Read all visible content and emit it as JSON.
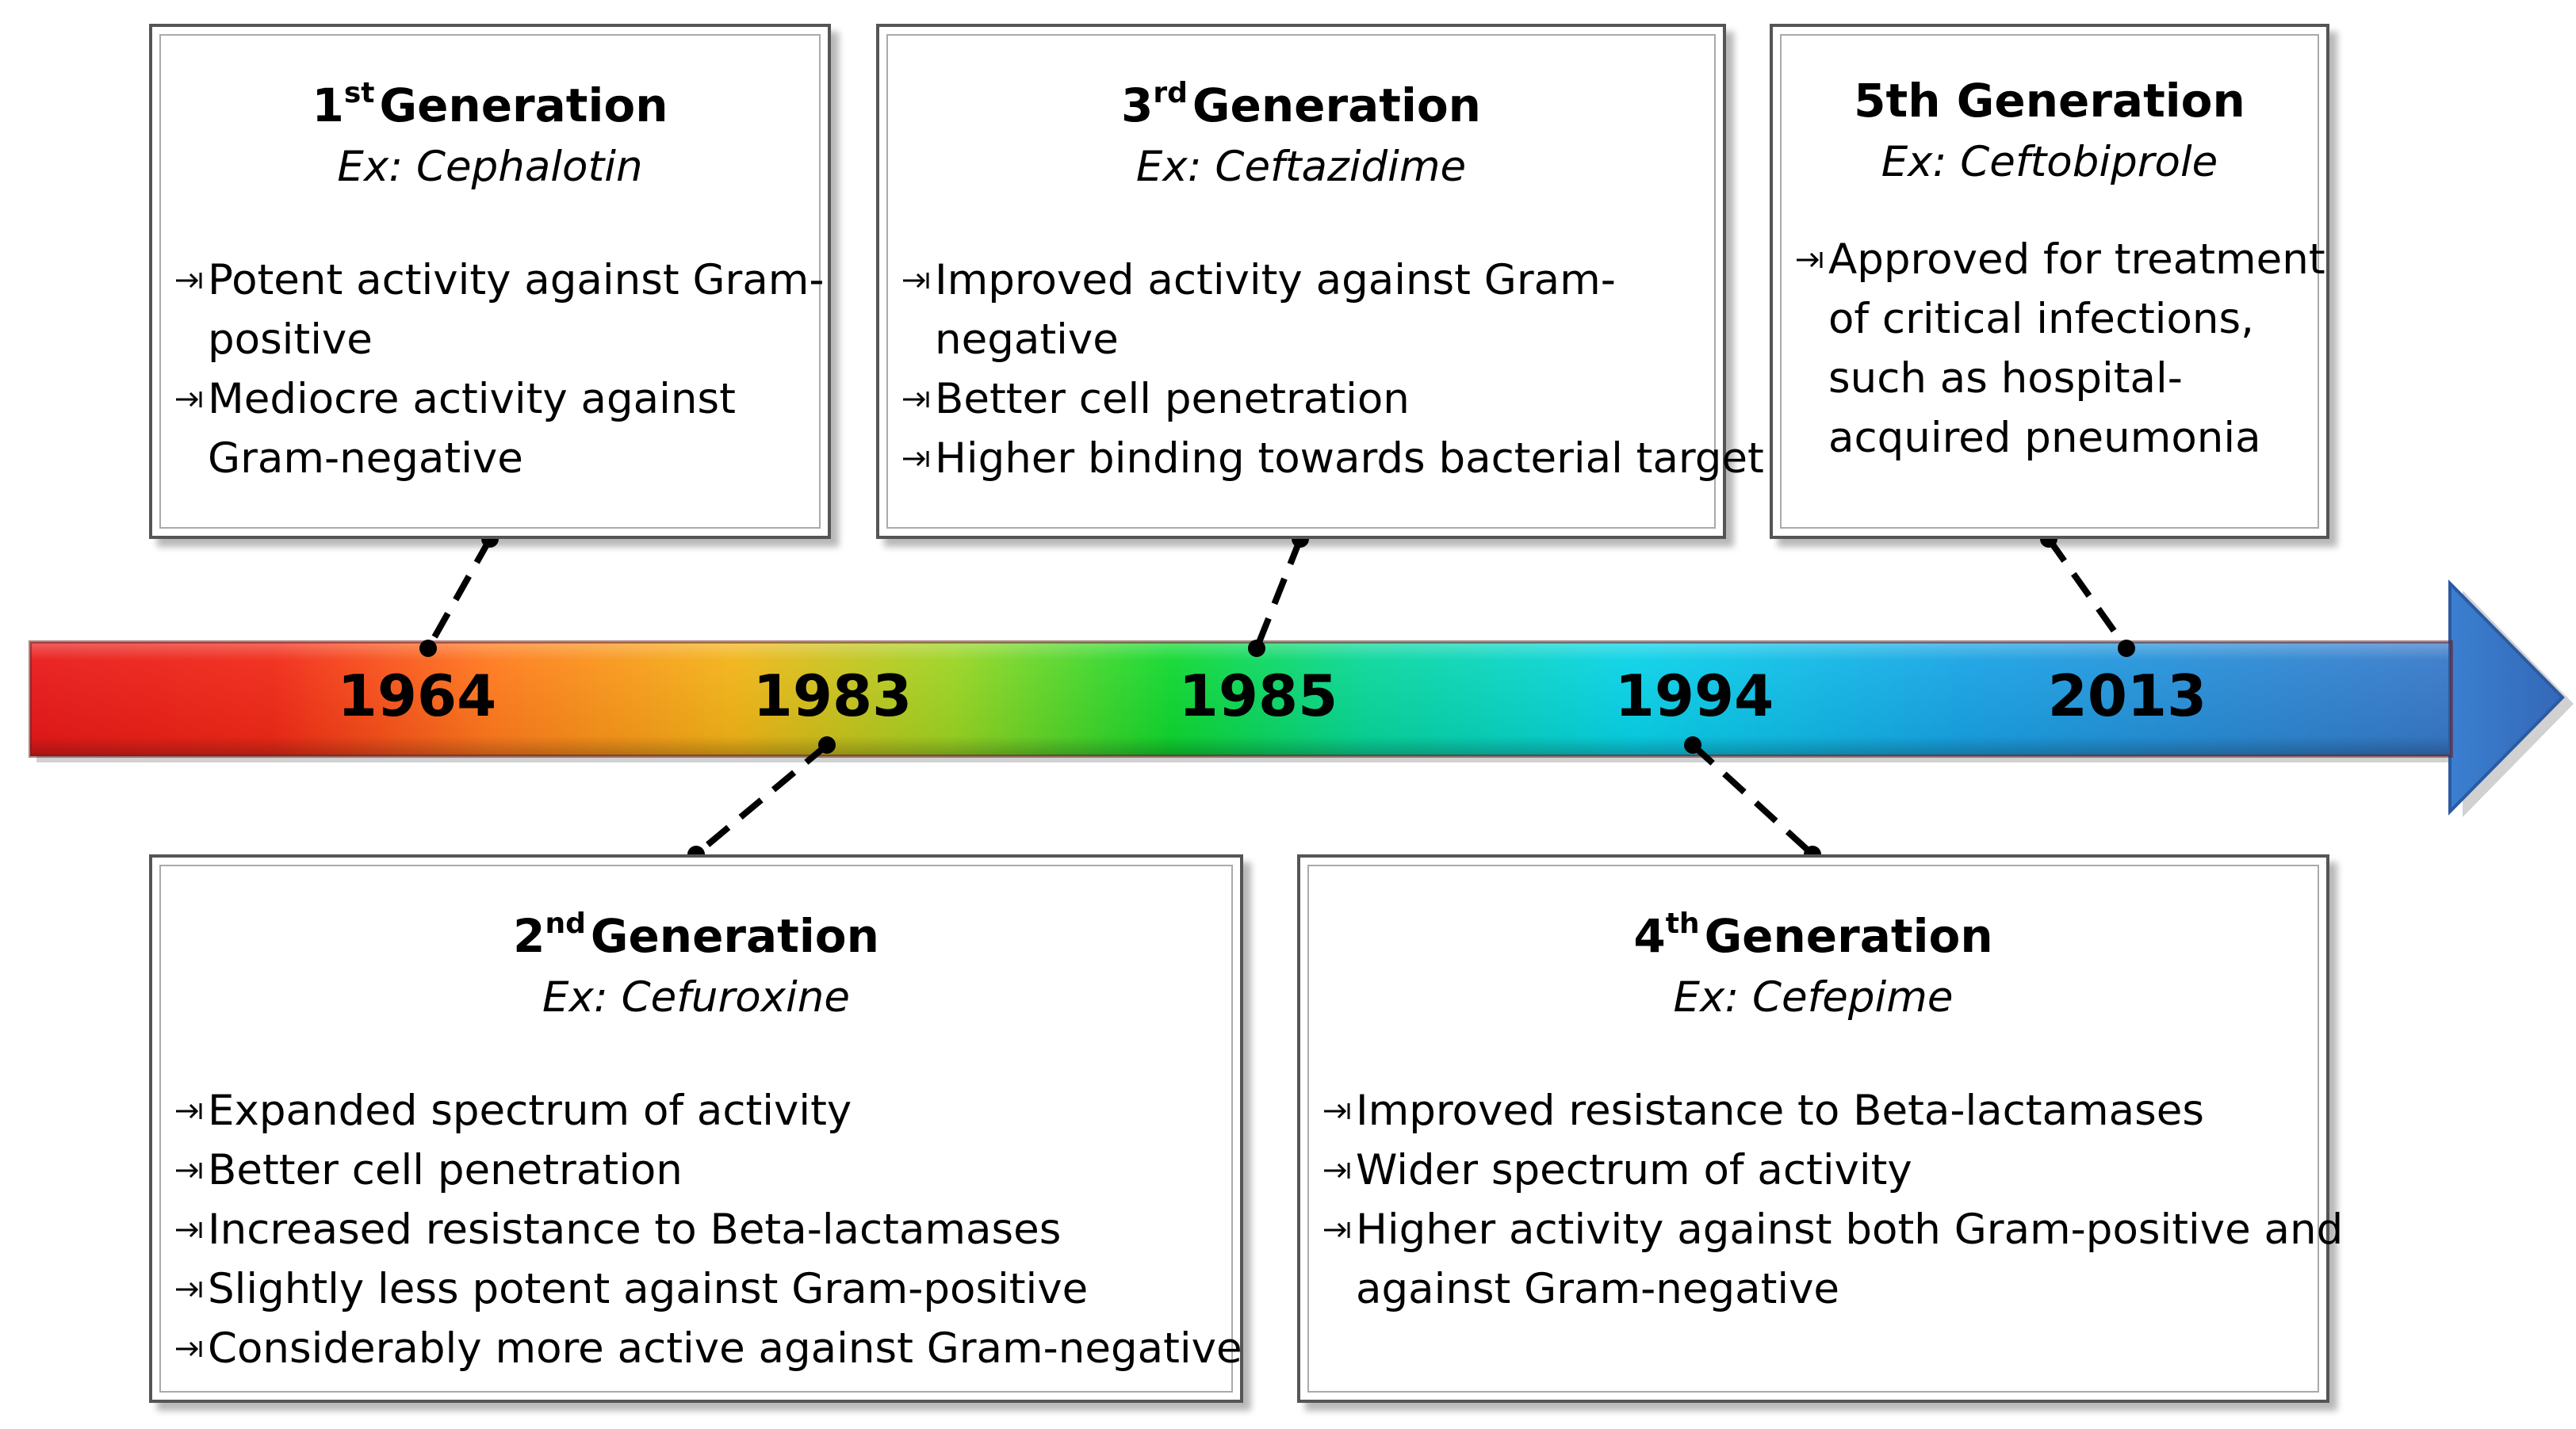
{
  "timeline": {
    "years": [
      "1964",
      "1983",
      "1985",
      "1994",
      "2013"
    ]
  },
  "generations": [
    {
      "ordinal": "1",
      "suffix": "st",
      "title": "Generation",
      "example": "Ex: Cephalotin",
      "year": "1964",
      "points": [
        [
          "Potent activity against Gram-",
          "positive"
        ],
        [
          "Mediocre activity against",
          "Gram-negative"
        ]
      ]
    },
    {
      "ordinal": "2",
      "suffix": "nd",
      "title": "Generation",
      "example": "Ex: Cefuroxine",
      "year": "1983",
      "points": [
        [
          "Expanded spectrum of activity"
        ],
        [
          "Better cell penetration"
        ],
        [
          "Increased resistance to Beta-lactamases"
        ],
        [
          "Slightly less potent against Gram-positive"
        ],
        [
          "Considerably more active against Gram-negative"
        ]
      ]
    },
    {
      "ordinal": "3",
      "suffix": "rd",
      "title": "Generation",
      "example": "Ex: Ceftazidime",
      "year": "1985",
      "points": [
        [
          "Improved activity against Gram-",
          "negative"
        ],
        [
          "Better cell penetration"
        ],
        [
          "Higher binding towards bacterial target"
        ]
      ]
    },
    {
      "ordinal": "4",
      "suffix": "th",
      "title": "Generation",
      "example": "Ex: Cefepime",
      "year": "1994",
      "points": [
        [
          "Improved resistance to Beta-lactamases"
        ],
        [
          "Wider spectrum of activity"
        ],
        [
          "Higher activity against both Gram-positive and",
          "against Gram-negative"
        ]
      ]
    },
    {
      "ordinal": "5th",
      "suffix": "",
      "title": "Generation",
      "example": "Ex: Ceftobiprole",
      "year": "2013",
      "points": [
        [
          "Approved for treatment",
          "of critical infections,",
          "such as hospital-",
          "acquired pneumonia"
        ]
      ]
    }
  ],
  "colors": {
    "arrow_red": "#e81a1a",
    "arrow_orange": "#ff7a1e",
    "arrow_yellow": "#f2b418",
    "arrow_green": "#10d830",
    "arrow_cyan": "#0ad2e8",
    "arrow_blue": "#2a82d8",
    "arrow_head_blue": "#3a78c8",
    "connector": "#000000"
  }
}
